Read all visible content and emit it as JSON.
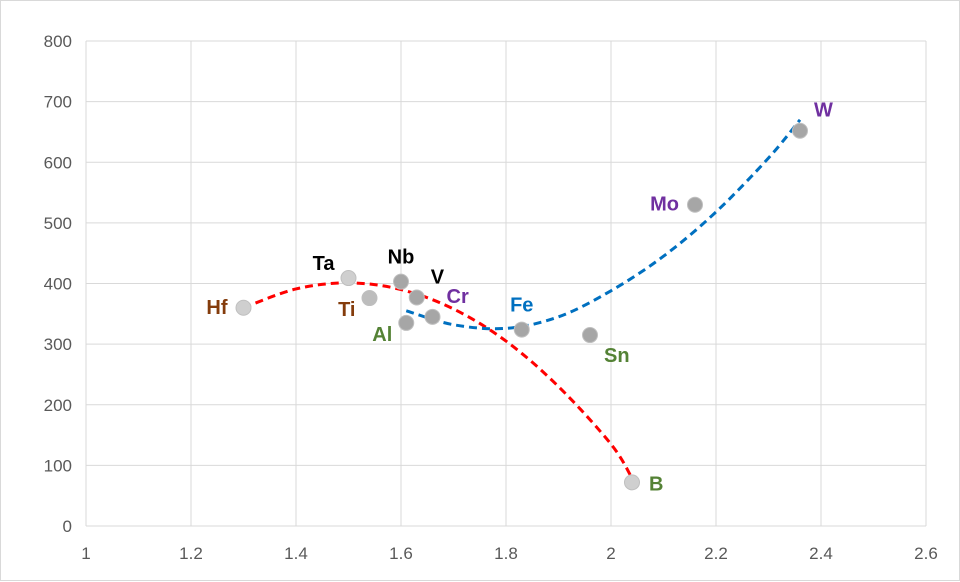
{
  "chart_data": {
    "type": "scatter",
    "title": "",
    "xlabel": "",
    "ylabel": "",
    "xlim": [
      1,
      2.6
    ],
    "ylim": [
      0,
      800
    ],
    "x_ticks": [
      1,
      1.2,
      1.4,
      1.6,
      1.8,
      2,
      2.2,
      2.4,
      2.6
    ],
    "x_tick_labels": [
      "1",
      "1.2",
      "1.4",
      "1.6",
      "1.8",
      "2",
      "2.2",
      "2.4",
      "2.6"
    ],
    "y_ticks": [
      0,
      100,
      200,
      300,
      400,
      500,
      600,
      700,
      800
    ],
    "y_tick_labels": [
      "0",
      "100",
      "200",
      "300",
      "400",
      "500",
      "600",
      "700",
      "800"
    ],
    "grid": "vertical and horizontal",
    "legend": "none",
    "points": [
      {
        "label": "Hf",
        "x": 1.3,
        "y": 360,
        "color": "#843c0c",
        "marker": "#cfcfcf",
        "label_pos": "left"
      },
      {
        "label": "Ta",
        "x": 1.5,
        "y": 409,
        "color": "#000000",
        "marker": "#cfcfcf",
        "label_pos": "upper-left"
      },
      {
        "label": "Ti",
        "x": 1.54,
        "y": 376,
        "color": "#843c0c",
        "marker": "#bdbdbd",
        "label_pos": "lower-left"
      },
      {
        "label": "Nb",
        "x": 1.6,
        "y": 403,
        "color": "#000000",
        "marker": "#a6a6a6",
        "label_pos": "top"
      },
      {
        "label": "V",
        "x": 1.63,
        "y": 377,
        "color": "#000000",
        "marker": "#a6a6a6",
        "label_pos": "upper-right"
      },
      {
        "label": "Cr",
        "x": 1.66,
        "y": 345,
        "color": "#7030a0",
        "marker": "#a6a6a6",
        "label_pos": "upper-right"
      },
      {
        "label": "Al",
        "x": 1.61,
        "y": 335,
        "color": "#548235",
        "marker": "#a6a6a6",
        "label_pos": "lower-left"
      },
      {
        "label": "Fe",
        "x": 1.83,
        "y": 324,
        "color": "#0070c0",
        "marker": "#a6a6a6",
        "label_pos": "top"
      },
      {
        "label": "Sn",
        "x": 1.96,
        "y": 315,
        "color": "#548235",
        "marker": "#a6a6a6",
        "label_pos": "lower-right"
      },
      {
        "label": "Mo",
        "x": 2.16,
        "y": 530,
        "color": "#7030a0",
        "marker": "#a6a6a6",
        "label_pos": "left"
      },
      {
        "label": "W",
        "x": 2.36,
        "y": 652,
        "color": "#7030a0",
        "marker": "#a6a6a6",
        "label_pos": "upper-right"
      },
      {
        "label": "B",
        "x": 2.04,
        "y": 72,
        "color": "#548235",
        "marker": "#cfcfcf",
        "label_pos": "right"
      }
    ],
    "trendlines": [
      {
        "type": "polynomial-2",
        "color": "#ff0000",
        "style": "dashed",
        "x": [
          1.3,
          1.4,
          1.5,
          1.6,
          1.7,
          1.8,
          1.9,
          2.0,
          2.04
        ],
        "y": [
          360,
          391,
          401,
          390,
          358,
          305,
          230,
          135,
          79
        ]
      },
      {
        "type": "polynomial-2",
        "color": "#0070c0",
        "style": "dashed",
        "x": [
          1.61,
          1.7,
          1.8,
          1.9,
          2.0,
          2.1,
          2.2,
          2.3,
          2.36
        ],
        "y": [
          355,
          332,
          326,
          345,
          388,
          445,
          518,
          607,
          670
        ]
      }
    ]
  }
}
